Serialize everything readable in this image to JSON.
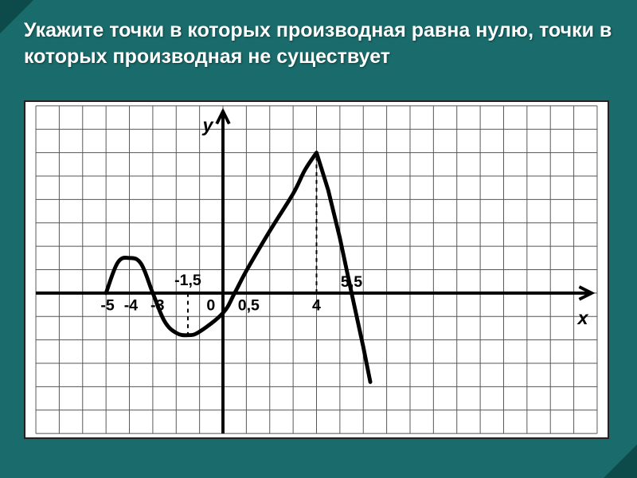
{
  "slide": {
    "background": "#1a6b6b",
    "corner_color": "#0d4a4a",
    "title": "Укажите точки в которых производная равна нулю, точки в которых производная не существует",
    "title_color": "#ffffff",
    "title_fontsize": 25
  },
  "chart": {
    "type": "line",
    "background": "#ffffff",
    "border_color": "#222222",
    "grid_color": "#555555",
    "axis_color": "#000000",
    "curve_color": "#000000",
    "dash_color": "#000000",
    "label_color": "#000000",
    "cell": 30,
    "x_origin_cell": 8,
    "y_origin_cell": 8,
    "cols": 24,
    "rows": 14,
    "axis_labels": {
      "x": "x",
      "y": "y",
      "fontsize": 24
    },
    "tick_fontsize": 20,
    "x_ticks": [
      {
        "v": -5,
        "label": "-5"
      },
      {
        "v": -4,
        "label": "-4"
      },
      {
        "v": -3,
        "label": "-3"
      },
      {
        "v": -1.5,
        "label": "-1,5",
        "dy": -2
      },
      {
        "v": 0,
        "label": "0"
      },
      {
        "v": 0.5,
        "label": "0,5"
      },
      {
        "v": 4,
        "label": "4"
      },
      {
        "v": 5.5,
        "label": "5,5"
      }
    ],
    "curve_points": [
      {
        "x": -5,
        "y": 0
      },
      {
        "x": -4.5,
        "y": 1.3
      },
      {
        "x": -4,
        "y": 1.5
      },
      {
        "x": -3.5,
        "y": 1.25
      },
      {
        "x": -3,
        "y": 0
      },
      {
        "x": -2.5,
        "y": -1.2
      },
      {
        "x": -2.0,
        "y": -1.7
      },
      {
        "x": -1.5,
        "y": -1.8
      },
      {
        "x": -1.0,
        "y": -1.65
      },
      {
        "x": 0.0,
        "y": -0.85
      },
      {
        "x": 0.5,
        "y": 0
      },
      {
        "x": 1.0,
        "y": 0.95
      },
      {
        "x": 2.0,
        "y": 2.65
      },
      {
        "x": 3.0,
        "y": 4.25
      },
      {
        "x": 3.5,
        "y": 5.25
      },
      {
        "x": 4.0,
        "y": 6.0
      },
      {
        "x": 4.5,
        "y": 4.4
      },
      {
        "x": 5.0,
        "y": 2.35
      },
      {
        "x": 5.5,
        "y": 0
      },
      {
        "x": 6.0,
        "y": -2.3
      },
      {
        "x": 6.3,
        "y": -3.8
      }
    ],
    "smooth_until_index": 15,
    "dashed_lines": [
      {
        "x": -1.5,
        "y_from": 0,
        "y_to": -1.8
      },
      {
        "x": 4,
        "y_from": 0,
        "y_to": 6.0
      }
    ]
  }
}
